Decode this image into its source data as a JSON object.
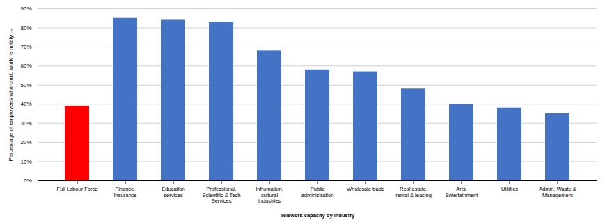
{
  "chart_data": {
    "type": "bar",
    "xlabel": "Telework capacity by industry",
    "ylabel": "Percentage of employees who could work remotely",
    "categories": [
      "Full Labour Force",
      "Finance,\nInsurance",
      "Education\nservices",
      "Professional,\nScientific & Tech\nServices",
      "Infromation,\ncultural\nindustries",
      "Public\nadministration",
      "Wholesale trade",
      "Real estate,\nrental & leasing",
      "Arts,\nEntertainment",
      "Utilities",
      "Admin, Waste &\nManagement"
    ],
    "values": [
      39,
      85,
      84,
      83,
      68,
      58,
      57,
      48,
      40,
      38,
      35
    ],
    "colors": [
      "#ff0000",
      "#4472c4",
      "#4472c4",
      "#4472c4",
      "#4472c4",
      "#4472c4",
      "#4472c4",
      "#4472c4",
      "#4472c4",
      "#4472c4",
      "#4472c4"
    ],
    "ylim": [
      0,
      90
    ],
    "yticks": [
      {
        "value": 0,
        "label": "0%"
      },
      {
        "value": 10,
        "label": "10%"
      },
      {
        "value": 20,
        "label": "20%"
      },
      {
        "value": 30,
        "label": "30%"
      },
      {
        "value": 40,
        "label": "40%"
      },
      {
        "value": 50,
        "label": "50%"
      },
      {
        "value": 60,
        "label": "60%"
      },
      {
        "value": 70,
        "label": "70%"
      },
      {
        "value": 80,
        "label": "80%"
      },
      {
        "value": 90,
        "label": "90%"
      }
    ],
    "grid": true
  }
}
